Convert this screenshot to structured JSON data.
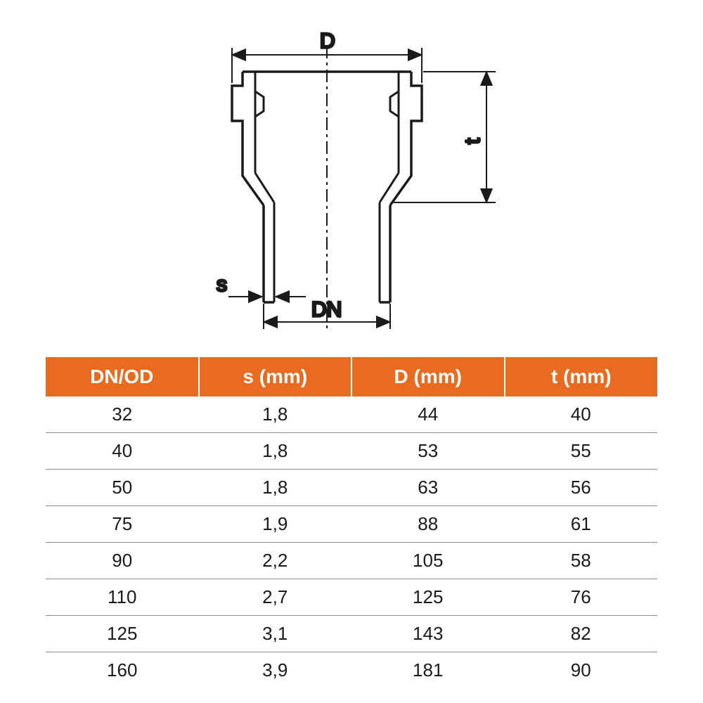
{
  "diagram": {
    "labels": {
      "D": "D",
      "t": "t",
      "s": "s",
      "DN": "DN"
    },
    "stroke_color": "#1a1a1a",
    "centerline_dash": "18 6 4 6"
  },
  "table": {
    "header_bg": "#e96b1f",
    "header_fg": "#ffffff",
    "row_border": "#8a8a8a",
    "cell_fg": "#1a1a1a",
    "columns": [
      "DN/OD",
      "s (mm)",
      "D (mm)",
      "t (mm)"
    ],
    "rows": [
      [
        "32",
        "1,8",
        "44",
        "40"
      ],
      [
        "40",
        "1,8",
        "53",
        "55"
      ],
      [
        "50",
        "1,8",
        "63",
        "56"
      ],
      [
        "75",
        "1,9",
        "88",
        "61"
      ],
      [
        "90",
        "2,2",
        "105",
        "58"
      ],
      [
        "110",
        "2,7",
        "125",
        "76"
      ],
      [
        "125",
        "3,1",
        "143",
        "82"
      ],
      [
        "160",
        "3,9",
        "181",
        "90"
      ]
    ]
  }
}
